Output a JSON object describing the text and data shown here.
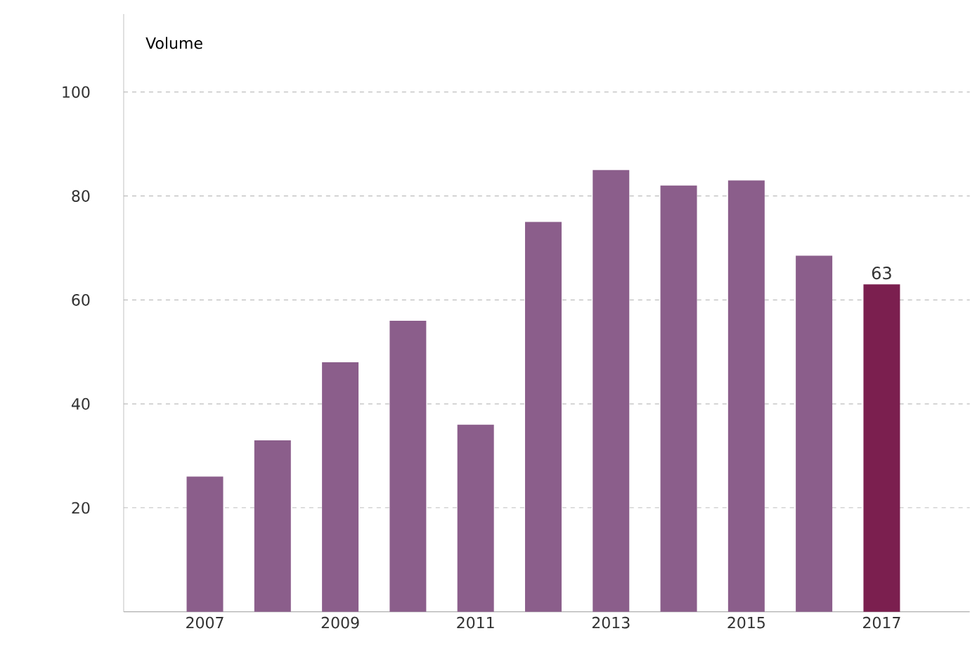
{
  "chart_data": {
    "type": "bar",
    "ylabel": "Volume",
    "categories": [
      "2007",
      null,
      "2009",
      null,
      "2011",
      null,
      "2013",
      null,
      "2015",
      null,
      "2017"
    ],
    "values": [
      26,
      33,
      48,
      56,
      36,
      75,
      85,
      82,
      83,
      68.5,
      63
    ],
    "colors": [
      "#8b5e8b",
      "#8b5e8b",
      "#8b5e8b",
      "#8b5e8b",
      "#8b5e8b",
      "#8b5e8b",
      "#8b5e8b",
      "#8b5e8b",
      "#8b5e8b",
      "#8b5e8b",
      "#7b1f4f"
    ],
    "value_labels": [
      null,
      null,
      null,
      null,
      null,
      null,
      null,
      null,
      null,
      null,
      "63"
    ],
    "ylim": [
      0,
      115
    ],
    "yticks": [
      20,
      40,
      60,
      80,
      100
    ],
    "grid": "y"
  }
}
